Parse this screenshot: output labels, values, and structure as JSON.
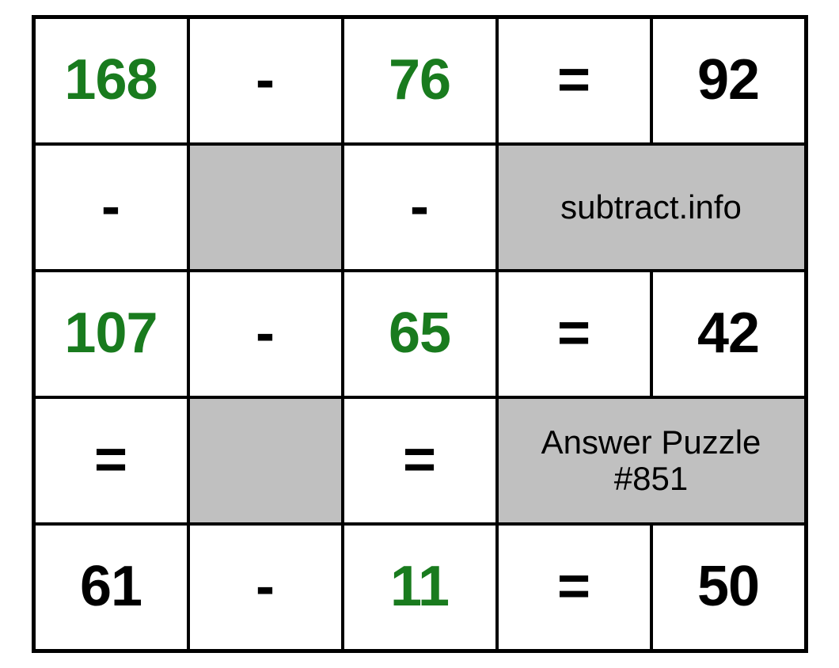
{
  "puzzle": {
    "type": "table",
    "columns": 5,
    "rows": 5,
    "border_color": "#000000",
    "background_color": "#ffffff",
    "shaded_color": "#c0c0c0",
    "number_fontsize": 72,
    "info_fontsize": 42,
    "green_hex": "#197b1e",
    "black_hex": "#000000",
    "site_label": "subtract.info",
    "answer_label": "Answer Puzzle #851",
    "r1": {
      "a": "168",
      "op": "-",
      "b": "76",
      "eq": "=",
      "c": "92"
    },
    "r2": {
      "a": "-",
      "b": "-"
    },
    "r3": {
      "a": "107",
      "op": "-",
      "b": "65",
      "eq": "=",
      "c": "42"
    },
    "r4": {
      "a": "=",
      "b": "="
    },
    "r5": {
      "a": "61",
      "op": "-",
      "b": "11",
      "eq": "=",
      "c": "50"
    }
  }
}
